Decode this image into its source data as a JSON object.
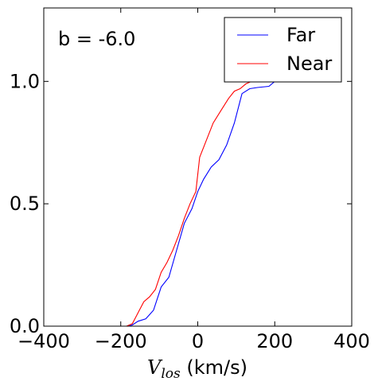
{
  "chart_data": {
    "type": "line",
    "annotation": "b = -6.0",
    "xlabel_main": "V",
    "xlabel_sub": "los",
    "xlabel_unit": " (km/s)",
    "xlim": [
      -400,
      400
    ],
    "ylim": [
      0,
      1.3
    ],
    "x_ticks": [
      -400,
      -200,
      0,
      200,
      400
    ],
    "x_tick_labels": [
      "−400",
      "−200",
      "0",
      "200",
      "400"
    ],
    "y_ticks": [
      0,
      0.5,
      1.0
    ],
    "y_tick_labels": [
      "0.0",
      "0.5",
      "1.0"
    ],
    "grid": false,
    "legend_position": "top-right",
    "series": [
      {
        "name": "Far",
        "color": "#0000ff",
        "points": [
          [
            -210,
            0.0
          ],
          [
            -180,
            0.0
          ],
          [
            -170,
            0.005
          ],
          [
            -155,
            0.02
          ],
          [
            -135,
            0.03
          ],
          [
            -115,
            0.065
          ],
          [
            -95,
            0.16
          ],
          [
            -75,
            0.2
          ],
          [
            -55,
            0.31
          ],
          [
            -35,
            0.42
          ],
          [
            -15,
            0.48
          ],
          [
            0,
            0.55
          ],
          [
            15,
            0.6
          ],
          [
            35,
            0.65
          ],
          [
            55,
            0.68
          ],
          [
            75,
            0.74
          ],
          [
            95,
            0.83
          ],
          [
            115,
            0.95
          ],
          [
            135,
            0.97
          ],
          [
            155,
            0.975
          ],
          [
            185,
            0.98
          ],
          [
            200,
            1.0
          ],
          [
            230,
            1.0
          ]
        ]
      },
      {
        "name": "Near",
        "color": "#ff0000",
        "points": [
          [
            -210,
            0.0
          ],
          [
            -185,
            0.0
          ],
          [
            -170,
            0.01
          ],
          [
            -160,
            0.04
          ],
          [
            -150,
            0.07
          ],
          [
            -140,
            0.1
          ],
          [
            -125,
            0.12
          ],
          [
            -110,
            0.15
          ],
          [
            -95,
            0.22
          ],
          [
            -80,
            0.26
          ],
          [
            -65,
            0.31
          ],
          [
            -50,
            0.37
          ],
          [
            -35,
            0.44
          ],
          [
            -20,
            0.5
          ],
          [
            -5,
            0.55
          ],
          [
            5,
            0.69
          ],
          [
            20,
            0.75
          ],
          [
            40,
            0.83
          ],
          [
            60,
            0.88
          ],
          [
            80,
            0.93
          ],
          [
            95,
            0.96
          ],
          [
            110,
            0.97
          ],
          [
            125,
            0.99
          ],
          [
            140,
            1.0
          ],
          [
            180,
            1.0
          ]
        ]
      }
    ]
  }
}
